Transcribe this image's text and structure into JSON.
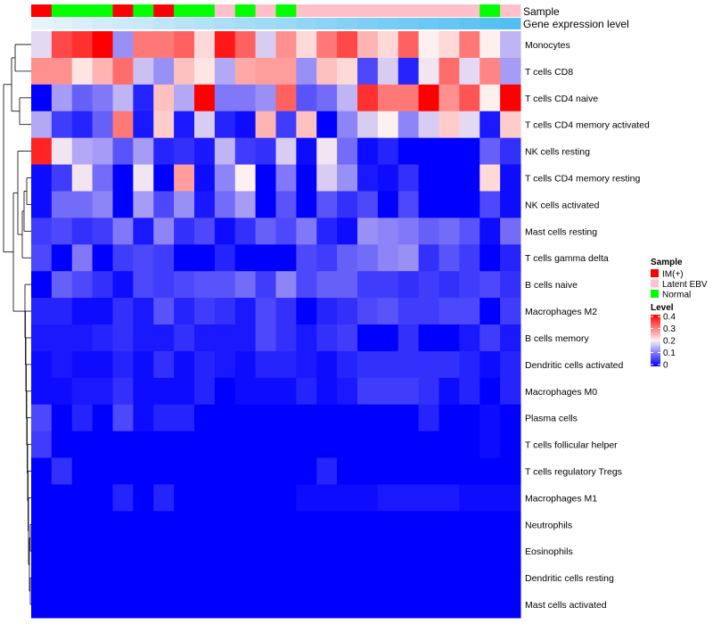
{
  "chart_data": {
    "type": "heatmap",
    "annotation_titles": [
      "Sample",
      "Gene expression level"
    ],
    "columns": 24,
    "sample_groups": [
      "IM(+)",
      "Normal",
      "Normal",
      "Normal",
      "IM(+)",
      "Normal",
      "IM(+)",
      "Normal",
      "Normal",
      "Latent EBV",
      "Normal",
      "Latent EBV",
      "Normal",
      "Latent EBV",
      "Latent EBV",
      "Latent EBV",
      "Latent EBV",
      "Latent EBV",
      "Latent EBV",
      "Latent EBV",
      "Latent EBV",
      "Latent EBV",
      "Normal",
      "Latent EBV"
    ],
    "rows": [
      {
        "label": "Monocytes",
        "values": [
          0.18,
          0.34,
          0.36,
          0.4,
          0.12,
          0.3,
          0.3,
          0.32,
          0.22,
          0.38,
          0.32,
          0.17,
          0.28,
          0.22,
          0.3,
          0.34,
          0.25,
          0.22,
          0.32,
          0.2,
          0.22,
          0.3,
          0.2,
          0.15
        ]
      },
      {
        "label": "T cells CD8",
        "values": [
          0.28,
          0.28,
          0.21,
          0.25,
          0.31,
          0.16,
          0.12,
          0.24,
          0.21,
          0.14,
          0.26,
          0.27,
          0.27,
          0.12,
          0.24,
          0.22,
          0.06,
          0.17,
          0.03,
          0.19,
          0.31,
          0.18,
          0.29,
          0.13
        ]
      },
      {
        "label": "T cells CD4 naive",
        "values": [
          0.0,
          0.13,
          0.08,
          0.1,
          0.15,
          0.03,
          0.24,
          0.14,
          0.4,
          0.1,
          0.1,
          0.12,
          0.32,
          0.07,
          0.09,
          0.15,
          0.36,
          0.3,
          0.3,
          0.4,
          0.28,
          0.33,
          0.2,
          0.4
        ]
      },
      {
        "label": "T cells CD4 memory activated",
        "values": [
          0.14,
          0.05,
          0.03,
          0.08,
          0.3,
          0.02,
          0.23,
          0.02,
          0.17,
          0.03,
          0.01,
          0.25,
          0.05,
          0.24,
          0.0,
          0.11,
          0.17,
          0.2,
          0.11,
          0.17,
          0.23,
          0.18,
          0.02,
          0.23
        ]
      },
      {
        "label": "NK cells resting",
        "values": [
          0.37,
          0.19,
          0.14,
          0.13,
          0.07,
          0.13,
          0.03,
          0.04,
          0.02,
          0.15,
          0.05,
          0.04,
          0.17,
          0.01,
          0.19,
          0.09,
          0.01,
          0.03,
          0.0,
          0.0,
          0.0,
          0.0,
          0.08,
          0.04
        ]
      },
      {
        "label": "T cells CD4 memory resting",
        "values": [
          0.01,
          0.05,
          0.19,
          0.09,
          0.0,
          0.19,
          0.0,
          0.27,
          0.01,
          0.11,
          0.2,
          0.0,
          0.1,
          0.0,
          0.17,
          0.12,
          0.02,
          0.01,
          0.04,
          0.0,
          0.0,
          0.0,
          0.22,
          0.01
        ]
      },
      {
        "label": "NK cells activated",
        "values": [
          0.01,
          0.09,
          0.09,
          0.11,
          0.0,
          0.13,
          0.06,
          0.12,
          0.02,
          0.09,
          0.13,
          0.0,
          0.07,
          0.0,
          0.07,
          0.04,
          0.06,
          0.0,
          0.06,
          0.0,
          0.0,
          0.0,
          0.06,
          0.01
        ]
      },
      {
        "label": "Mast cells resting",
        "values": [
          0.05,
          0.06,
          0.04,
          0.05,
          0.1,
          0.02,
          0.11,
          0.04,
          0.06,
          0.01,
          0.04,
          0.08,
          0.06,
          0.1,
          0.03,
          0.01,
          0.12,
          0.11,
          0.1,
          0.08,
          0.09,
          0.07,
          0.01,
          0.09
        ]
      },
      {
        "label": "T cells gamma delta",
        "values": [
          0.06,
          0.0,
          0.1,
          0.0,
          0.05,
          0.06,
          0.05,
          0.0,
          0.0,
          0.03,
          0.0,
          0.0,
          0.0,
          0.06,
          0.05,
          0.08,
          0.09,
          0.11,
          0.12,
          0.04,
          0.07,
          0.05,
          0.0,
          0.03
        ]
      },
      {
        "label": "B cells naive",
        "values": [
          0.0,
          0.08,
          0.06,
          0.04,
          0.01,
          0.06,
          0.05,
          0.06,
          0.07,
          0.07,
          0.09,
          0.05,
          0.11,
          0.06,
          0.08,
          0.08,
          0.05,
          0.05,
          0.04,
          0.05,
          0.04,
          0.05,
          0.06,
          0.04
        ]
      },
      {
        "label": "Macrophages M2",
        "values": [
          0.03,
          0.03,
          0.01,
          0.01,
          0.04,
          0.02,
          0.07,
          0.03,
          0.05,
          0.04,
          0.02,
          0.06,
          0.04,
          0.0,
          0.03,
          0.04,
          0.06,
          0.07,
          0.05,
          0.05,
          0.06,
          0.06,
          0.0,
          0.05
        ]
      },
      {
        "label": "B cells memory",
        "values": [
          0.02,
          0.02,
          0.02,
          0.03,
          0.04,
          0.02,
          0.02,
          0.04,
          0.02,
          0.02,
          0.02,
          0.06,
          0.04,
          0.02,
          0.04,
          0.05,
          0.0,
          0.0,
          0.04,
          0.0,
          0.0,
          0.02,
          0.05,
          0.02
        ]
      },
      {
        "label": "Dendritic cells activated",
        "values": [
          0.01,
          0.02,
          0.01,
          0.01,
          0.03,
          0.01,
          0.04,
          0.01,
          0.03,
          0.02,
          0.01,
          0.03,
          0.03,
          0.02,
          0.01,
          0.03,
          0.04,
          0.04,
          0.04,
          0.04,
          0.04,
          0.03,
          0.01,
          0.03
        ]
      },
      {
        "label": "Macrophages M0",
        "values": [
          0.01,
          0.01,
          0.02,
          0.02,
          0.04,
          0.01,
          0.01,
          0.01,
          0.03,
          0.0,
          0.01,
          0.01,
          0.01,
          0.03,
          0.01,
          0.02,
          0.05,
          0.05,
          0.05,
          0.04,
          0.01,
          0.03,
          0.0,
          0.03
        ]
      },
      {
        "label": "Plasma cells",
        "values": [
          0.06,
          0.0,
          0.03,
          0.0,
          0.06,
          0.01,
          0.03,
          0.03,
          0.0,
          0.0,
          0.0,
          0.0,
          0.0,
          0.0,
          0.0,
          0.0,
          0.0,
          0.0,
          0.0,
          0.03,
          0.0,
          0.0,
          0.01,
          0.0
        ]
      },
      {
        "label": "T cells follicular helper",
        "values": [
          0.05,
          0.0,
          0.0,
          0.0,
          0.0,
          0.0,
          0.0,
          0.0,
          0.0,
          0.0,
          0.0,
          0.0,
          0.0,
          0.0,
          0.0,
          0.0,
          0.0,
          0.0,
          0.0,
          0.0,
          0.0,
          0.0,
          0.01,
          0.0
        ]
      },
      {
        "label": "T cells regulatory  Tregs",
        "values": [
          0.0,
          0.04,
          0.0,
          0.0,
          0.0,
          0.0,
          0.0,
          0.0,
          0.0,
          0.0,
          0.0,
          0.0,
          0.0,
          0.0,
          0.03,
          0.0,
          0.0,
          0.0,
          0.0,
          0.0,
          0.0,
          0.0,
          0.0,
          0.0
        ]
      },
      {
        "label": "Macrophages M1",
        "values": [
          0.0,
          0.0,
          0.0,
          0.0,
          0.03,
          0.0,
          0.03,
          0.0,
          0.0,
          0.0,
          0.0,
          0.0,
          0.0,
          0.01,
          0.01,
          0.01,
          0.01,
          0.02,
          0.02,
          0.02,
          0.02,
          0.01,
          0.01,
          0.01
        ]
      },
      {
        "label": "Neutrophils",
        "values": [
          0.0,
          0.0,
          0.0,
          0.0,
          0.0,
          0.0,
          0.0,
          0.0,
          0.0,
          0.0,
          0.0,
          0.0,
          0.0,
          0.0,
          0.0,
          0.0,
          0.0,
          0.0,
          0.0,
          0.0,
          0.0,
          0.0,
          0.0,
          0.0
        ]
      },
      {
        "label": "Eosinophils",
        "values": [
          0.0,
          0.0,
          0.0,
          0.0,
          0.0,
          0.0,
          0.0,
          0.0,
          0.0,
          0.0,
          0.0,
          0.0,
          0.0,
          0.0,
          0.0,
          0.0,
          0.0,
          0.0,
          0.0,
          0.0,
          0.0,
          0.0,
          0.0,
          0.0
        ]
      },
      {
        "label": "Dendritic cells resting",
        "values": [
          0.0,
          0.0,
          0.0,
          0.0,
          0.0,
          0.0,
          0.0,
          0.0,
          0.0,
          0.0,
          0.0,
          0.0,
          0.0,
          0.0,
          0.0,
          0.0,
          0.0,
          0.0,
          0.0,
          0.0,
          0.0,
          0.0,
          0.0,
          0.0
        ]
      },
      {
        "label": "Mast cells activated",
        "values": [
          0.0,
          0.0,
          0.0,
          0.0,
          0.0,
          0.0,
          0.0,
          0.0,
          0.0,
          0.0,
          0.0,
          0.0,
          0.0,
          0.0,
          0.0,
          0.0,
          0.0,
          0.0,
          0.0,
          0.0,
          0.0,
          0.0,
          0.0,
          0.0
        ]
      }
    ],
    "legend_sample": {
      "title": "Sample",
      "entries": [
        {
          "label": "IM(+)",
          "color": "#ff0000"
        },
        {
          "label": "Latent EBV",
          "color": "#ffc0cb"
        },
        {
          "label": "Normal",
          "color": "#00ff00"
        }
      ]
    },
    "legend_level": {
      "title": "Level",
      "ticks": [
        "0.4",
        "0.3",
        "0.2",
        "0.1",
        "0"
      ],
      "range": [
        0,
        0.4
      ]
    },
    "colors": {
      "low": "#0000ff",
      "mid": "#fff0f0",
      "high": "#ff0000",
      "gene_low": "#e6f3fb",
      "gene_high": "#52bff2"
    }
  }
}
